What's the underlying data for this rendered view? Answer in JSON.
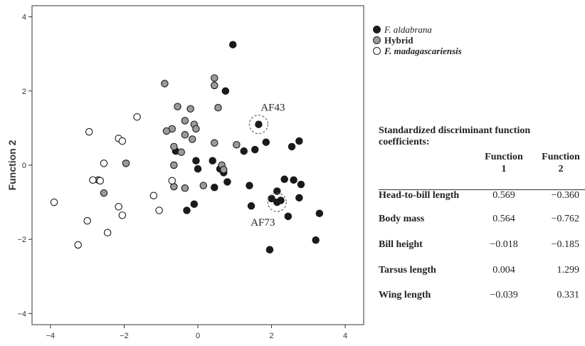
{
  "chart_data": {
    "type": "scatter",
    "title": "",
    "xlabel": "",
    "ylabel": "Function 2",
    "xlim": [
      -4.5,
      4.5
    ],
    "ylim": [
      -4.3,
      4.3
    ],
    "xticks": [
      "−4",
      "−2",
      "0",
      "2",
      "4"
    ],
    "yticks": [
      "−4",
      "−2",
      "0",
      "2",
      "4"
    ],
    "grid": false,
    "legend_position": "right-top",
    "series": [
      {
        "name": "F. aldabrana",
        "fill": "#1a1a1a",
        "points": [
          [
            0.95,
            3.25
          ],
          [
            0.75,
            2.0
          ],
          [
            1.65,
            1.1
          ],
          [
            1.25,
            0.38
          ],
          [
            1.55,
            0.42
          ],
          [
            1.85,
            0.62
          ],
          [
            2.55,
            0.5
          ],
          [
            2.75,
            0.65
          ],
          [
            -0.6,
            0.38
          ],
          [
            -0.05,
            0.12
          ],
          [
            0.0,
            -0.1
          ],
          [
            0.4,
            0.12
          ],
          [
            0.6,
            -0.1
          ],
          [
            0.7,
            -0.2
          ],
          [
            0.8,
            -0.45
          ],
          [
            0.45,
            -0.6
          ],
          [
            1.4,
            -0.55
          ],
          [
            1.45,
            -1.1
          ],
          [
            2.0,
            -0.9
          ],
          [
            2.15,
            -1.0
          ],
          [
            2.25,
            -0.95
          ],
          [
            2.15,
            -0.7
          ],
          [
            2.35,
            -0.38
          ],
          [
            2.6,
            -0.4
          ],
          [
            2.8,
            -0.52
          ],
          [
            2.75,
            -0.88
          ],
          [
            2.45,
            -1.38
          ],
          [
            -0.3,
            -1.22
          ],
          [
            -0.1,
            -1.05
          ],
          [
            3.3,
            -1.3
          ],
          [
            1.95,
            -2.28
          ],
          [
            3.2,
            -2.02
          ]
        ]
      },
      {
        "name": "Hybrid",
        "fill": "#9a9a9a",
        "points": [
          [
            0.45,
            2.35
          ],
          [
            0.45,
            2.15
          ],
          [
            -0.9,
            2.2
          ],
          [
            0.55,
            1.55
          ],
          [
            -0.55,
            1.58
          ],
          [
            -0.2,
            1.52
          ],
          [
            -0.35,
            1.2
          ],
          [
            -0.1,
            1.1
          ],
          [
            -0.7,
            0.98
          ],
          [
            -0.85,
            0.92
          ],
          [
            -0.35,
            0.82
          ],
          [
            -0.05,
            0.98
          ],
          [
            -0.15,
            0.7
          ],
          [
            0.45,
            0.6
          ],
          [
            -0.65,
            0.5
          ],
          [
            -0.45,
            0.35
          ],
          [
            1.05,
            0.55
          ],
          [
            -0.65,
            0.0
          ],
          [
            0.65,
            0.0
          ],
          [
            0.7,
            -0.12
          ],
          [
            -0.35,
            -0.62
          ],
          [
            0.15,
            -0.55
          ],
          [
            -0.65,
            -0.58
          ],
          [
            -1.95,
            0.05
          ],
          [
            -2.55,
            -0.75
          ],
          [
            -2.7,
            -0.4
          ]
        ]
      },
      {
        "name": "F. madagascariensis",
        "fill": "#ffffff",
        "points": [
          [
            -1.65,
            1.3
          ],
          [
            -2.95,
            0.9
          ],
          [
            -2.15,
            0.72
          ],
          [
            -2.05,
            0.65
          ],
          [
            -2.55,
            0.05
          ],
          [
            -2.85,
            -0.4
          ],
          [
            -2.65,
            -0.42
          ],
          [
            -0.7,
            -0.42
          ],
          [
            -3.9,
            -1.0
          ],
          [
            -1.2,
            -0.82
          ],
          [
            -2.15,
            -1.12
          ],
          [
            -2.05,
            -1.35
          ],
          [
            -1.05,
            -1.22
          ],
          [
            -3.0,
            -1.5
          ],
          [
            -2.45,
            -1.82
          ],
          [
            -3.25,
            -2.15
          ]
        ]
      }
    ],
    "annotations": [
      {
        "text": "AF43",
        "x": 1.65,
        "y": 1.1
      },
      {
        "text": "AF73",
        "x": 2.15,
        "y": -1.0
      }
    ]
  },
  "coefficients": {
    "title": "Standardized discriminant function coefficients:",
    "col1": "Function 1",
    "col2": "Function 2",
    "rows": [
      {
        "label": "Head-to-bill length",
        "f1": "0.569",
        "f2": "−0.360"
      },
      {
        "label": "Body mass",
        "f1": "0.564",
        "f2": "−0.762"
      },
      {
        "label": "Bill height",
        "f1": "−0.018",
        "f2": "−0.185"
      },
      {
        "label": "Tarsus length",
        "f1": "0.004",
        "f2": "1.299"
      },
      {
        "label": "Wing length",
        "f1": "−0.039",
        "f2": "0.331"
      }
    ]
  }
}
